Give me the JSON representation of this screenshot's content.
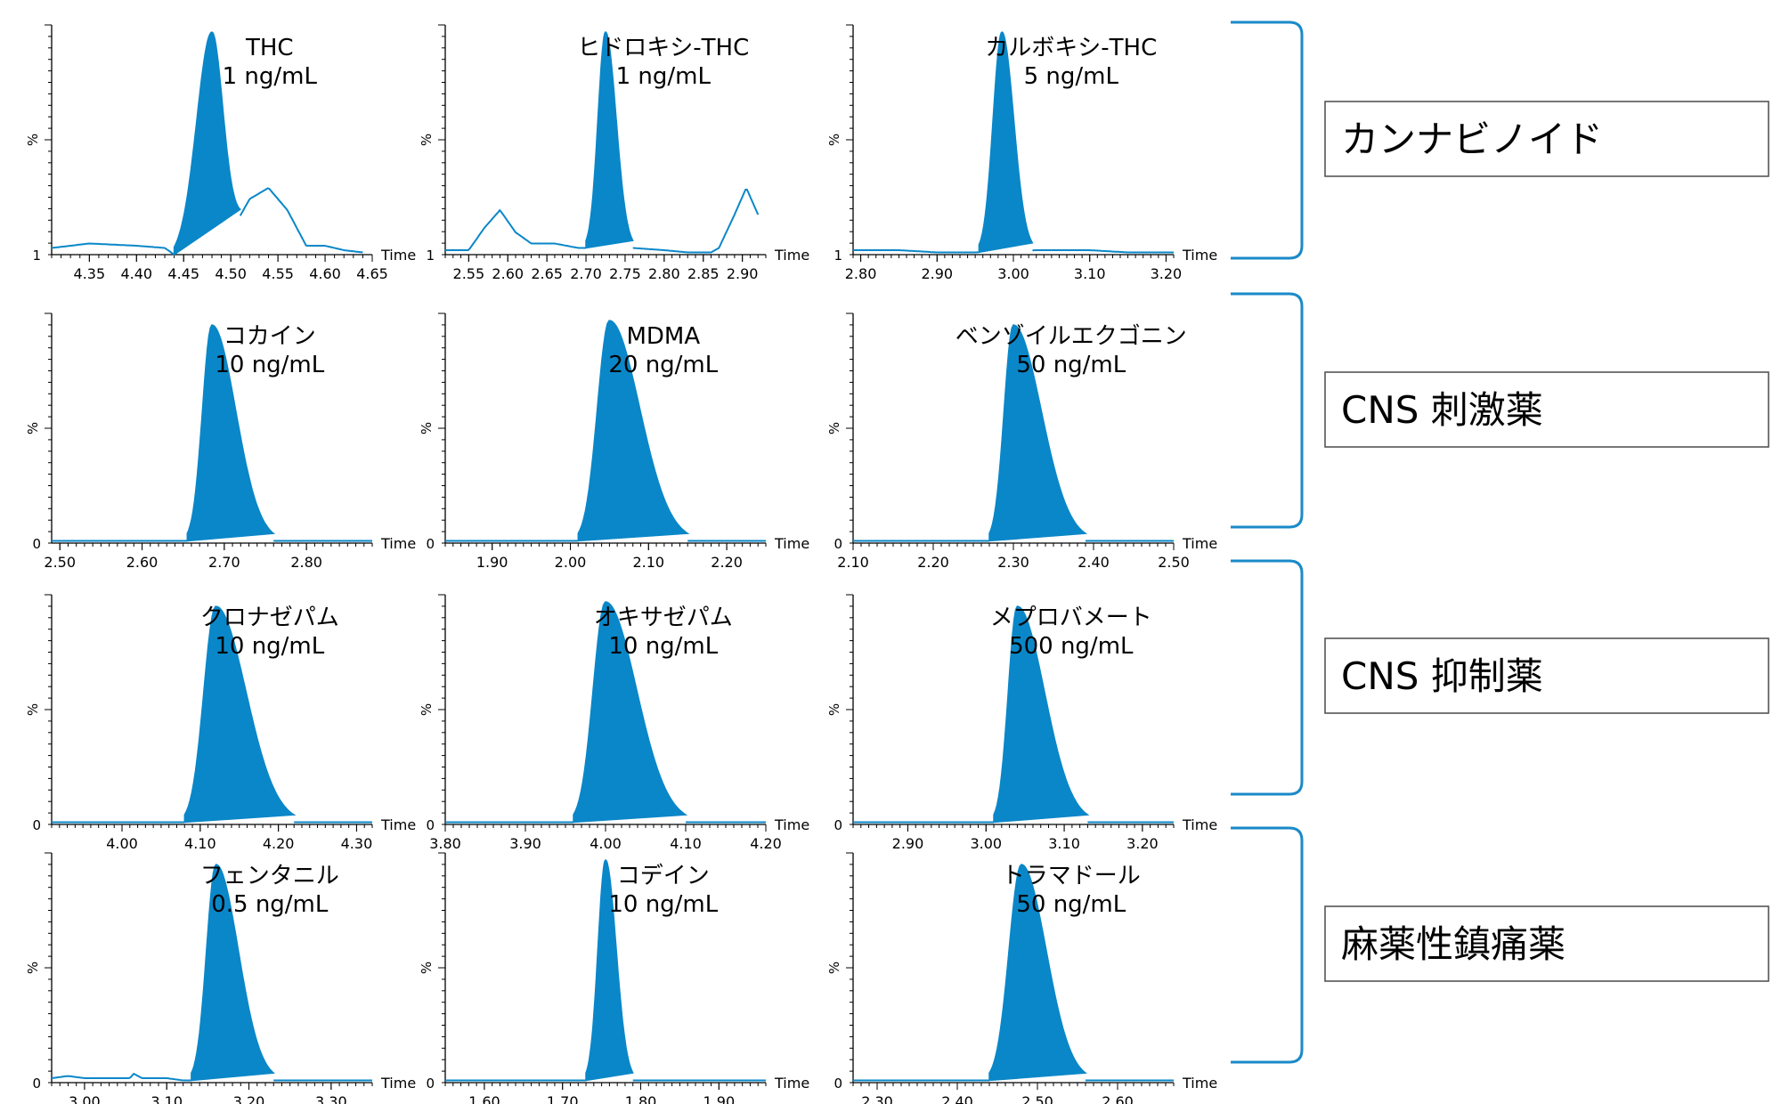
{
  "chart_data": [
    {
      "type": "line",
      "x_label": "Time",
      "y_label": "%",
      "y_base": "1",
      "title": [
        "THC",
        "1 ng/mL"
      ],
      "xlim": [
        4.31,
        4.65
      ],
      "xticks": [
        "4.35",
        "4.40",
        "4.45",
        "4.50",
        "4.55",
        "4.60",
        "4.65"
      ],
      "peak": {
        "rt": 4.48,
        "left": 4.44,
        "right": 4.51,
        "height": 1.0
      },
      "trace": {
        "x": [
          4.31,
          4.35,
          4.4,
          4.43,
          4.44,
          4.5,
          4.52,
          4.54,
          4.56,
          4.58,
          4.6,
          4.62,
          4.64
        ],
        "y": [
          0.03,
          0.05,
          0.04,
          0.03,
          0.0,
          0.1,
          0.25,
          0.3,
          0.2,
          0.04,
          0.04,
          0.02,
          0.01
        ]
      }
    },
    {
      "type": "line",
      "x_label": "Time",
      "y_label": "%",
      "y_base": "1",
      "title": [
        "ヒドロキシ-THC",
        "1 ng/mL"
      ],
      "xlim": [
        2.52,
        2.93
      ],
      "xticks": [
        "2.55",
        "2.60",
        "2.65",
        "2.70",
        "2.75",
        "2.80",
        "2.85",
        "2.90"
      ],
      "peak": {
        "rt": 2.725,
        "left": 2.7,
        "right": 2.76,
        "height": 1.0
      },
      "trace": {
        "x": [
          2.52,
          2.55,
          2.57,
          2.59,
          2.61,
          2.63,
          2.66,
          2.69,
          2.7,
          2.76,
          2.8,
          2.83,
          2.86,
          2.87,
          2.89,
          2.905,
          2.92
        ],
        "y": [
          0.02,
          0.02,
          0.12,
          0.2,
          0.1,
          0.05,
          0.05,
          0.03,
          0.03,
          0.03,
          0.02,
          0.01,
          0.01,
          0.03,
          0.18,
          0.3,
          0.18
        ]
      }
    },
    {
      "type": "line",
      "x_label": "Time",
      "y_label": "%",
      "y_base": "1",
      "title": [
        "カルボキシ-THC",
        "5 ng/mL"
      ],
      "xlim": [
        2.79,
        3.21
      ],
      "xticks": [
        "2.80",
        "2.90",
        "3.00",
        "3.10",
        "3.20"
      ],
      "peak": {
        "rt": 2.985,
        "left": 2.955,
        "right": 3.025,
        "height": 1.0
      },
      "trace": {
        "x": [
          2.79,
          2.85,
          2.9,
          2.95,
          3.03,
          3.1,
          3.15,
          3.21
        ],
        "y": [
          0.02,
          0.02,
          0.01,
          0.01,
          0.02,
          0.02,
          0.01,
          0.01
        ]
      }
    },
    {
      "type": "line",
      "x_label": "Time",
      "y_label": "%",
      "y_base": "0",
      "title": [
        "コカイン",
        "10 ng/mL"
      ],
      "xlim": [
        2.49,
        2.88
      ],
      "xticks": [
        "2.50",
        "2.60",
        "2.70",
        "2.80"
      ],
      "peak": {
        "rt": 2.685,
        "left": 2.655,
        "right": 2.76,
        "height": 0.98
      },
      "trace": {
        "x": [
          2.49,
          2.88
        ],
        "y": [
          0.01,
          0.01
        ]
      }
    },
    {
      "type": "line",
      "x_label": "Time",
      "y_label": "%",
      "y_base": "0",
      "title": [
        "MDMA",
        "20 ng/mL"
      ],
      "xlim": [
        1.84,
        2.25
      ],
      "xticks": [
        "1.90",
        "2.00",
        "2.10",
        "2.20"
      ],
      "peak": {
        "rt": 2.05,
        "left": 2.01,
        "right": 2.15,
        "height": 1.0
      },
      "trace": {
        "x": [
          1.84,
          2.25
        ],
        "y": [
          0.01,
          0.01
        ]
      }
    },
    {
      "type": "line",
      "x_label": "Time",
      "y_label": "%",
      "y_base": "0",
      "title": [
        "ベンゾイルエクゴニン",
        "50 ng/mL"
      ],
      "xlim": [
        2.1,
        2.5
      ],
      "xticks": [
        "2.10",
        "2.20",
        "2.30",
        "2.40",
        "2.50"
      ],
      "peak": {
        "rt": 2.3,
        "left": 2.27,
        "right": 2.39,
        "height": 0.98
      },
      "trace": {
        "x": [
          2.1,
          2.5
        ],
        "y": [
          0.01,
          0.01
        ]
      }
    },
    {
      "type": "line",
      "x_label": "Time",
      "y_label": "%",
      "y_base": "0",
      "title": [
        "クロナゼパム",
        "10 ng/mL"
      ],
      "xlim": [
        3.91,
        4.32
      ],
      "xticks": [
        "4.00",
        "4.10",
        "4.20",
        "4.30"
      ],
      "peak": {
        "rt": 4.12,
        "left": 4.08,
        "right": 4.22,
        "height": 0.98
      },
      "trace": {
        "x": [
          3.91,
          4.32
        ],
        "y": [
          0.01,
          0.01
        ]
      }
    },
    {
      "type": "line",
      "x_label": "Time",
      "y_label": "%",
      "y_base": "0",
      "title": [
        "オキサゼパム",
        "10 ng/mL"
      ],
      "xlim": [
        3.8,
        4.2
      ],
      "xticks": [
        "3.80",
        "3.90",
        "4.00",
        "4.10",
        "4.20"
      ],
      "peak": {
        "rt": 4.0,
        "left": 3.96,
        "right": 4.1,
        "height": 1.0
      },
      "trace": {
        "x": [
          3.8,
          4.2
        ],
        "y": [
          0.01,
          0.01
        ]
      }
    },
    {
      "type": "line",
      "x_label": "Time",
      "y_label": "%",
      "y_base": "0",
      "title": [
        "メプロバメート",
        "500 ng/mL"
      ],
      "xlim": [
        2.83,
        3.24
      ],
      "xticks": [
        "2.90",
        "3.00",
        "3.10",
        "3.20"
      ],
      "peak": {
        "rt": 3.04,
        "left": 3.01,
        "right": 3.13,
        "height": 0.98
      },
      "trace": {
        "x": [
          2.83,
          3.24
        ],
        "y": [
          0.01,
          0.01
        ]
      }
    },
    {
      "type": "line",
      "x_label": "Time",
      "y_label": "%",
      "y_base": "0",
      "title": [
        "フェンタニル",
        "0.5 ng/mL"
      ],
      "xlim": [
        2.96,
        3.35
      ],
      "xticks": [
        "3.00",
        "3.10",
        "3.20",
        "3.30"
      ],
      "peak": {
        "rt": 3.16,
        "left": 3.13,
        "right": 3.23,
        "height": 0.98
      },
      "trace": {
        "x": [
          2.96,
          2.98,
          3.0,
          3.04,
          3.055,
          3.06,
          3.07,
          3.1,
          3.12,
          3.25,
          3.3,
          3.35
        ],
        "y": [
          0.02,
          0.03,
          0.02,
          0.02,
          0.02,
          0.04,
          0.02,
          0.02,
          0.01,
          0.01,
          0.01,
          0.01
        ]
      }
    },
    {
      "type": "line",
      "x_label": "Time",
      "y_label": "%",
      "y_base": "0",
      "title": [
        "コデイン",
        "10 ng/mL"
      ],
      "xlim": [
        1.55,
        1.96
      ],
      "xticks": [
        "1.60",
        "1.70",
        "1.80",
        "1.90"
      ],
      "peak": {
        "rt": 1.755,
        "left": 1.73,
        "right": 1.79,
        "height": 1.0
      },
      "trace": {
        "x": [
          1.55,
          1.96
        ],
        "y": [
          0.01,
          0.01
        ]
      }
    },
    {
      "type": "line",
      "x_label": "Time",
      "y_label": "%",
      "y_base": "0",
      "title": [
        "トラマドール",
        "50 ng/mL"
      ],
      "xlim": [
        2.27,
        2.67
      ],
      "xticks": [
        "2.30",
        "2.40",
        "2.50",
        "2.60"
      ],
      "peak": {
        "rt": 2.48,
        "left": 2.44,
        "right": 2.56,
        "height": 0.98
      },
      "trace": {
        "x": [
          2.27,
          2.67
        ],
        "y": [
          0.01,
          0.01
        ]
      }
    }
  ],
  "categories": [
    "カンナビノイド",
    "CNS 刺激薬",
    "CNS 抑制薬",
    "麻薬性鎮痛薬"
  ],
  "colors": {
    "trace": "#0a87c8",
    "fill": "#0a87c8",
    "bracket": "#1a8ac8"
  }
}
